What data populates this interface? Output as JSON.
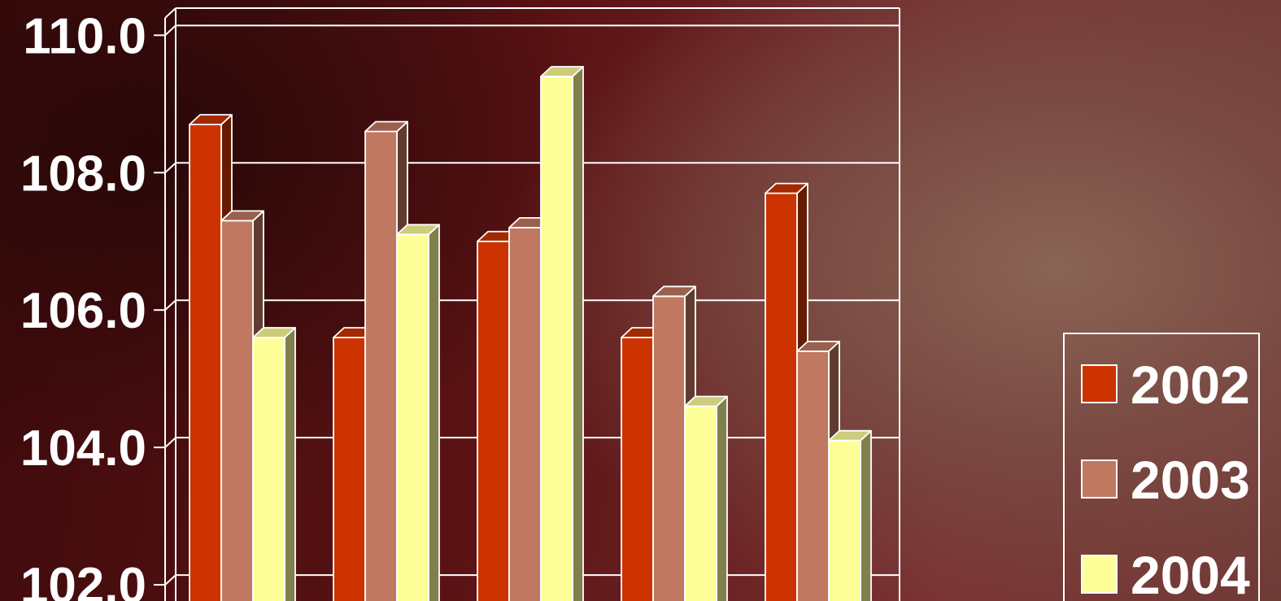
{
  "chart_data": {
    "type": "bar",
    "style": "3d-clustered-column",
    "categories": [
      "",
      "",
      "",
      "",
      ""
    ],
    "series": [
      {
        "name": "2002",
        "color": "#cc3300",
        "values": [
          108.7,
          105.6,
          107.0,
          105.6,
          107.7
        ]
      },
      {
        "name": "2003",
        "color": "#c07860",
        "values": [
          107.3,
          108.6,
          107.2,
          106.2,
          105.4
        ]
      },
      {
        "name": "2004",
        "color": "#ffff99",
        "values": [
          105.6,
          107.1,
          109.4,
          104.6,
          104.1
        ]
      }
    ],
    "yticks": [
      "110.0",
      "108.0",
      "106.0",
      "104.0",
      "102.0"
    ],
    "ylim": [
      100.9,
      110.3
    ],
    "grid": true,
    "legend_position": "right"
  }
}
